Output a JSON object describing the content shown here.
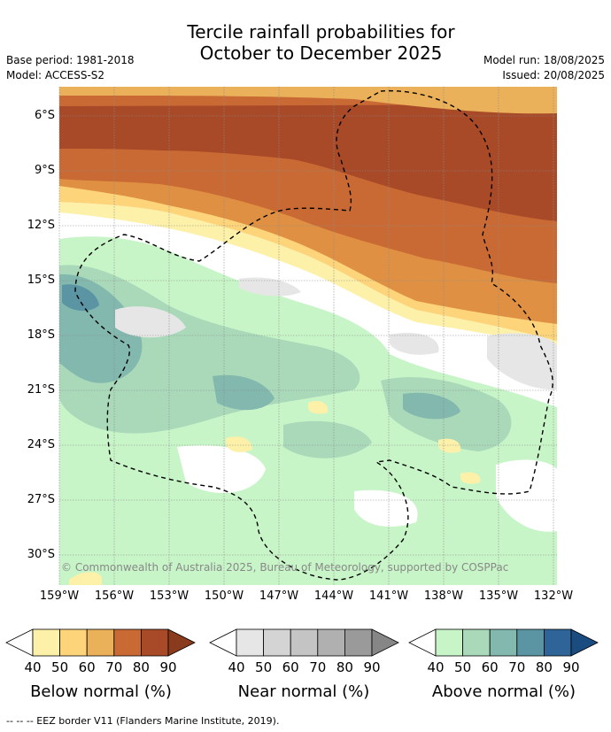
{
  "title_line1": "Tercile rainfall probabilities for",
  "title_line2": "October to December 2025",
  "meta_left": {
    "base_period": "Base period: 1981-2018",
    "model": "Model: ACCESS-S2"
  },
  "meta_right": {
    "model_run": "Model run: 18/08/2025",
    "issued": "Issued: 20/08/2025"
  },
  "map": {
    "lat_labels": [
      "6°S",
      "9°S",
      "12°S",
      "15°S",
      "18°S",
      "21°S",
      "24°S",
      "27°S",
      "30°S"
    ],
    "lon_labels": [
      "159°W",
      "156°W",
      "153°W",
      "150°W",
      "147°W",
      "144°W",
      "141°W",
      "138°W",
      "135°W",
      "132°W"
    ],
    "copyright": "© Commonwealth of Australia 2025, Bureau of Meteorology, supported by COSPPac"
  },
  "colors": {
    "below": [
      "#fdf0a8",
      "#fdd47a",
      "#ebb05a",
      "#df9043",
      "#c96a35",
      "#a84a28"
    ],
    "near": [
      "#e6e6e6",
      "#d4d4d4",
      "#c4c4c4",
      "#b0b0b0",
      "#9a9a9a",
      "#868686"
    ],
    "above": [
      "#c8f5c8",
      "#a9d9b9",
      "#82b8ae",
      "#5b94a3",
      "#2f6498",
      "#1a4c80"
    ]
  },
  "legend": {
    "ticks": [
      "40",
      "50",
      "60",
      "70",
      "80",
      "90"
    ],
    "below_title": "Below normal (%)",
    "near_title": "Near normal (%)",
    "above_title": "Above normal (%)"
  },
  "footnote": "--  --  -- EEZ border V11 (Flanders Marine Institute, 2019)."
}
